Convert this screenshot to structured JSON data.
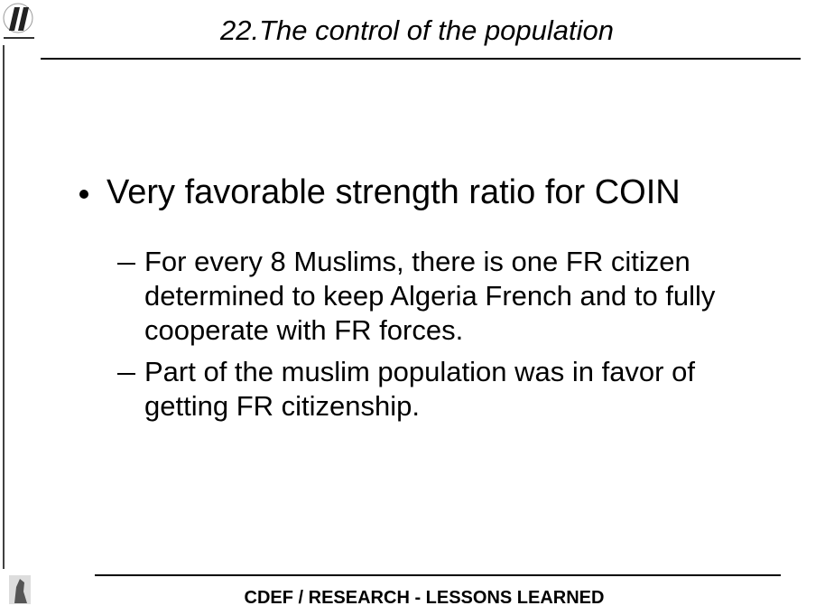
{
  "header": {
    "title": "22.The control of the population"
  },
  "body": {
    "bullet": "Very favorable strength ratio for COIN",
    "sub_bullets": [
      "For every 8 Muslims, there is one FR citizen determined to keep Algeria French and to fully cooperate with FR forces.",
      "Part of the muslim population was in favor of getting FR citizenship."
    ]
  },
  "footer": {
    "text": "CDEF / RESEARCH - LESSONS LEARNED"
  }
}
